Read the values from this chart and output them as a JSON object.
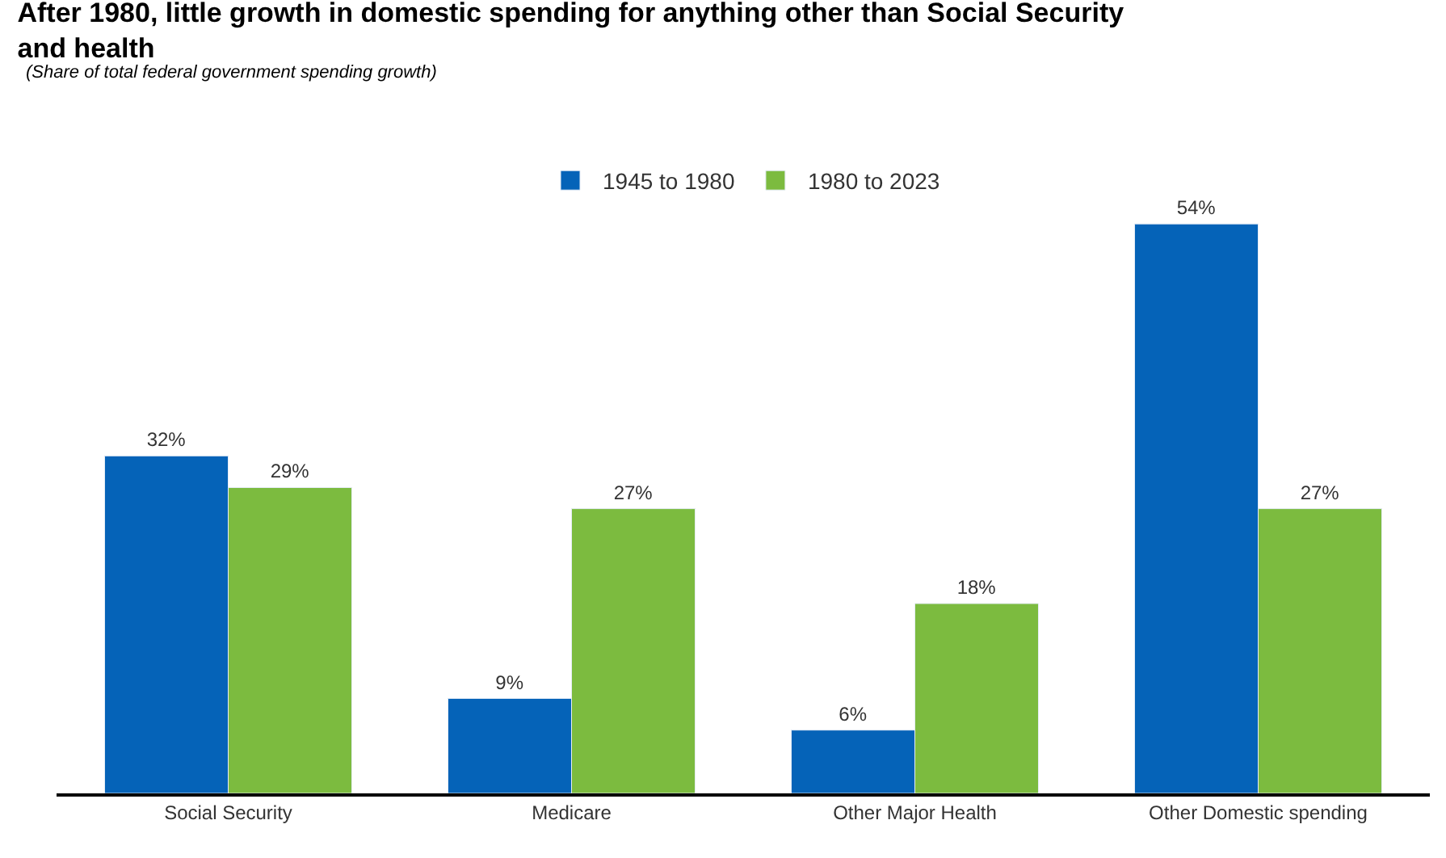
{
  "chart_data": {
    "type": "bar",
    "title": "After 1980, little growth in domestic spending for anything other than Social Security and health",
    "subtitle": "(Share of total federal government spending growth)",
    "categories": [
      "Social Security",
      "Medicare",
      "Other Major Health",
      "Other Domestic spending"
    ],
    "legend": "top",
    "series": [
      {
        "name": "1945 to 1980",
        "color": "#0563b8",
        "values": [
          32,
          9,
          6,
          54
        ],
        "value_labels": [
          "32%",
          "9%",
          "6%",
          "54%"
        ]
      },
      {
        "name": "1980 to 2023",
        "color": "#7cbb3f",
        "values": [
          29,
          27,
          18,
          27
        ],
        "value_labels": [
          "29%",
          "27%",
          "18%",
          "27%"
        ]
      }
    ]
  }
}
